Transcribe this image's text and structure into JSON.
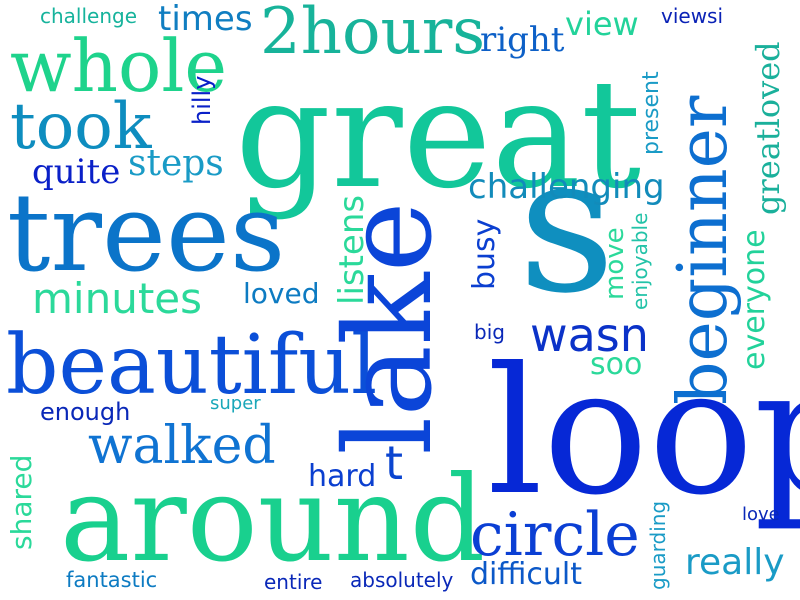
{
  "palette": {
    "green": "#1ed6a0",
    "teal": "#17a5a8",
    "blue": "#0a6fcf",
    "deep_blue": "#0b3fdc",
    "navy": "#0a28c8"
  },
  "words": [
    {
      "id": "great",
      "text": "great",
      "color": "#12c79a"
    },
    {
      "id": "trees",
      "text": "trees",
      "color": "#0b74c9"
    },
    {
      "id": "lake",
      "text": "lake",
      "color": "#0b45d8"
    },
    {
      "id": "s",
      "text": "s",
      "color": "#0f8fbf"
    },
    {
      "id": "loop",
      "text": "loop",
      "color": "#0628d6"
    },
    {
      "id": "around",
      "text": "around",
      "color": "#19d08e"
    },
    {
      "id": "beautiful",
      "text": "beautiful",
      "color": "#0b4fd8"
    },
    {
      "id": "beginner",
      "text": "beginner",
      "color": "#0d6fd0"
    },
    {
      "id": "2hours",
      "text": "2hours",
      "color": "#17b39a"
    },
    {
      "id": "whole",
      "text": "whole",
      "color": "#1ed38c"
    },
    {
      "id": "took",
      "text": "took",
      "color": "#0e8dbf"
    },
    {
      "id": "walked",
      "text": "walked",
      "color": "#0f73d2"
    },
    {
      "id": "circle",
      "text": "circle",
      "color": "#0b3fd4"
    },
    {
      "id": "minutes",
      "text": "minutes",
      "color": "#2bd99a"
    },
    {
      "id": "wasn",
      "text": "wasn",
      "color": "#0b32c8"
    },
    {
      "id": "challenging",
      "text": "challenging",
      "color": "#128bba"
    },
    {
      "id": "steps",
      "text": "steps",
      "color": "#1a9bc6"
    },
    {
      "id": "quite",
      "text": "quite",
      "color": "#0a20c8"
    },
    {
      "id": "times",
      "text": "times",
      "color": "#107ec1"
    },
    {
      "id": "right",
      "text": "right",
      "color": "#0d60c7"
    },
    {
      "id": "view",
      "text": "view",
      "color": "#23d39a"
    },
    {
      "id": "viewsi",
      "text": "viewsi",
      "color": "#0a22b6"
    },
    {
      "id": "challenge",
      "text": "challenge",
      "color": "#16b39c"
    },
    {
      "id": "greatloved",
      "text": "greatloved",
      "color": "#1ab09b"
    },
    {
      "id": "everyone",
      "text": "everyone",
      "color": "#22d29a"
    },
    {
      "id": "listens",
      "text": "listens",
      "color": "#2bd99a"
    },
    {
      "id": "busy",
      "text": "busy",
      "color": "#0b3fd0"
    },
    {
      "id": "move",
      "text": "move",
      "color": "#2bd99a"
    },
    {
      "id": "enjoyable",
      "text": "enjoyable",
      "color": "#23c3a8"
    },
    {
      "id": "present",
      "text": "present",
      "color": "#1a9bc6"
    },
    {
      "id": "hilly",
      "text": "hilly",
      "color": "#0a20c8"
    },
    {
      "id": "loved",
      "text": "loved",
      "color": "#0d7bc2"
    },
    {
      "id": "big",
      "text": "big",
      "color": "#0a28b8"
    },
    {
      "id": "soo",
      "text": "soo",
      "color": "#2bd99a"
    },
    {
      "id": "enough",
      "text": "enough",
      "color": "#0a28b8"
    },
    {
      "id": "super",
      "text": "super",
      "color": "#1aa7b9"
    },
    {
      "id": "hard",
      "text": "hard",
      "color": "#0b3fd0"
    },
    {
      "id": "t",
      "text": "t",
      "color": "#0b45d0"
    },
    {
      "id": "shared",
      "text": "shared",
      "color": "#2bd99a"
    },
    {
      "id": "difficult",
      "text": "difficult",
      "color": "#0b58c8"
    },
    {
      "id": "really",
      "text": "really",
      "color": "#1a9bc6"
    },
    {
      "id": "guarding",
      "text": "guarding",
      "color": "#1a9bc6"
    },
    {
      "id": "love",
      "text": "love",
      "color": "#0a28b8"
    },
    {
      "id": "fantastic",
      "text": "fantastic",
      "color": "#0d7bc2"
    },
    {
      "id": "entire",
      "text": "entire",
      "color": "#0a28b8"
    },
    {
      "id": "absolutely",
      "text": "absolutely",
      "color": "#0a28b8"
    }
  ]
}
